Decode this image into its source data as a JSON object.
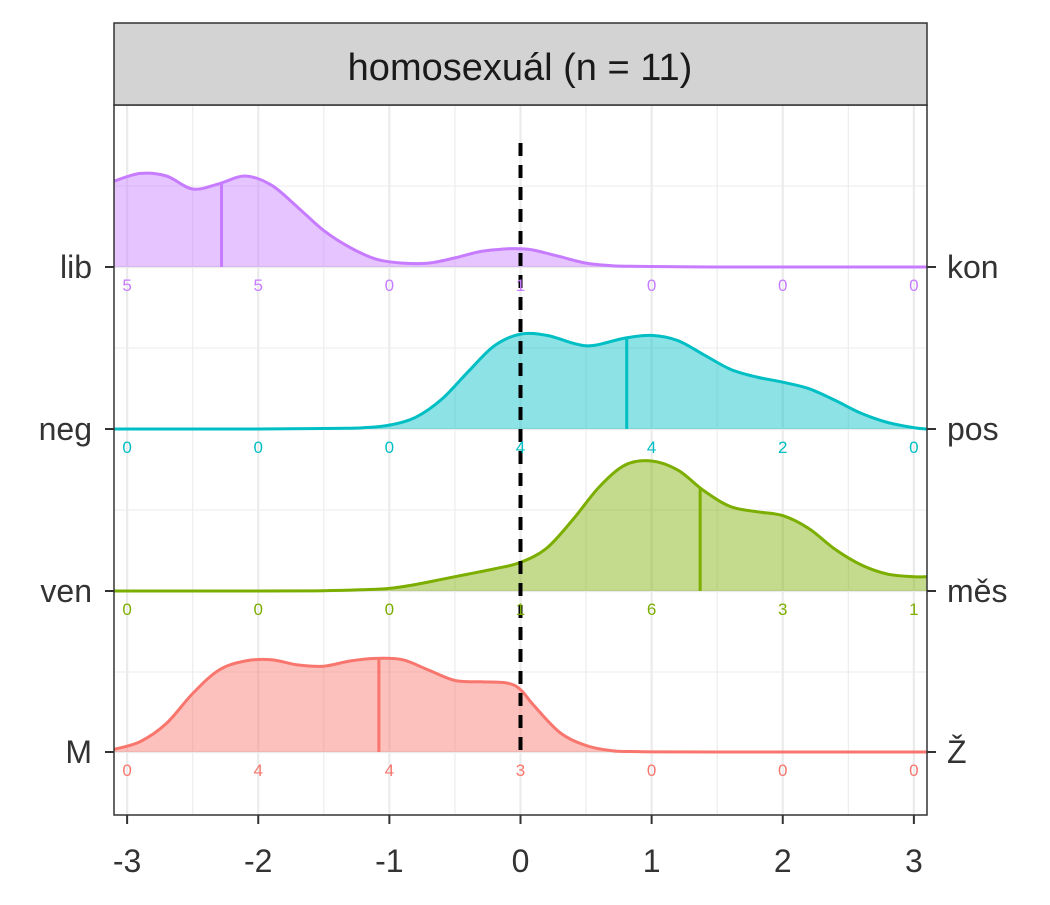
{
  "chart_data": {
    "type": "ridgeline",
    "title": "homosexuál (n = 11)",
    "xlabel": "",
    "ylabel": "",
    "xlim": [
      -3.1,
      3.1
    ],
    "x_ticks": [
      -3,
      -2,
      -1,
      0,
      1,
      2,
      3
    ],
    "x_tick_labels": [
      "-3",
      "-2",
      "-1",
      "0",
      "1",
      "2",
      "3"
    ],
    "reference_line_x": 0,
    "grid": true,
    "count_positions": [
      -3,
      -2,
      -1,
      0,
      1,
      2,
      3
    ],
    "rows": [
      {
        "left_label": "lib",
        "right_label": "kon",
        "color": "#C77CFF",
        "median": -2.28,
        "counts": [
          "5",
          "5",
          "0",
          "1",
          "0",
          "0",
          "0"
        ],
        "density_x": [
          -3.1,
          -2.9,
          -2.7,
          -2.5,
          -2.3,
          -2.1,
          -1.9,
          -1.7,
          -1.5,
          -1.3,
          -1.1,
          -0.9,
          -0.7,
          -0.5,
          -0.3,
          -0.1,
          0.0,
          0.1,
          0.3,
          0.5,
          0.7,
          0.9,
          1.2,
          1.6,
          2.0,
          2.5,
          3.1
        ],
        "density_y": [
          0.66,
          0.72,
          0.7,
          0.6,
          0.64,
          0.7,
          0.63,
          0.46,
          0.28,
          0.15,
          0.06,
          0.03,
          0.03,
          0.07,
          0.12,
          0.14,
          0.14,
          0.13,
          0.08,
          0.03,
          0.01,
          0.005,
          0.002,
          0.0,
          0.0,
          0.0,
          0.0
        ]
      },
      {
        "left_label": "neg",
        "right_label": "pos",
        "color": "#00BFC4",
        "median": 0.81,
        "counts": [
          "0",
          "0",
          "0",
          "4",
          "4",
          "2",
          "0"
        ],
        "density_x": [
          -3.1,
          -2.0,
          -1.4,
          -1.2,
          -1.0,
          -0.8,
          -0.6,
          -0.4,
          -0.2,
          0.0,
          0.2,
          0.4,
          0.5,
          0.6,
          0.8,
          1.0,
          1.2,
          1.4,
          1.6,
          1.8,
          2.0,
          2.2,
          2.4,
          2.6,
          2.8,
          3.0,
          3.1
        ],
        "density_y": [
          0.0,
          0.0,
          0.005,
          0.01,
          0.03,
          0.09,
          0.23,
          0.44,
          0.64,
          0.73,
          0.72,
          0.66,
          0.64,
          0.65,
          0.7,
          0.72,
          0.68,
          0.57,
          0.46,
          0.4,
          0.36,
          0.31,
          0.22,
          0.12,
          0.05,
          0.01,
          0.0
        ]
      },
      {
        "left_label": "ven",
        "right_label": "měs",
        "color": "#7CAE00",
        "median": 1.37,
        "counts": [
          "0",
          "0",
          "0",
          "1",
          "6",
          "3",
          "1"
        ],
        "density_x": [
          -3.1,
          -2.0,
          -1.5,
          -1.2,
          -1.0,
          -0.8,
          -0.6,
          -0.4,
          -0.2,
          0.0,
          0.2,
          0.4,
          0.6,
          0.8,
          1.0,
          1.2,
          1.4,
          1.6,
          1.8,
          2.0,
          2.2,
          2.4,
          2.6,
          2.8,
          3.0,
          3.1
        ],
        "density_y": [
          0.0,
          0.0,
          0.002,
          0.01,
          0.02,
          0.05,
          0.09,
          0.13,
          0.17,
          0.22,
          0.33,
          0.55,
          0.8,
          0.97,
          1.0,
          0.93,
          0.77,
          0.65,
          0.61,
          0.58,
          0.48,
          0.32,
          0.2,
          0.13,
          0.11,
          0.11
        ]
      },
      {
        "left_label": "M",
        "right_label": "Ž",
        "color": "#F8766D",
        "median": -1.08,
        "counts": [
          "0",
          "4",
          "4",
          "3",
          "0",
          "0",
          "0"
        ],
        "density_x": [
          -3.1,
          -2.9,
          -2.7,
          -2.5,
          -2.3,
          -2.1,
          -1.9,
          -1.7,
          -1.5,
          -1.3,
          -1.1,
          -0.9,
          -0.7,
          -0.5,
          -0.3,
          -0.1,
          0.0,
          0.1,
          0.3,
          0.5,
          0.7,
          0.9,
          1.1,
          1.5,
          2.0,
          2.5,
          3.1
        ],
        "density_y": [
          0.02,
          0.08,
          0.22,
          0.45,
          0.63,
          0.7,
          0.71,
          0.67,
          0.66,
          0.7,
          0.72,
          0.71,
          0.63,
          0.55,
          0.54,
          0.53,
          0.48,
          0.36,
          0.15,
          0.05,
          0.01,
          0.003,
          0.001,
          0.0,
          0.0,
          0.0,
          0.0
        ]
      }
    ]
  }
}
